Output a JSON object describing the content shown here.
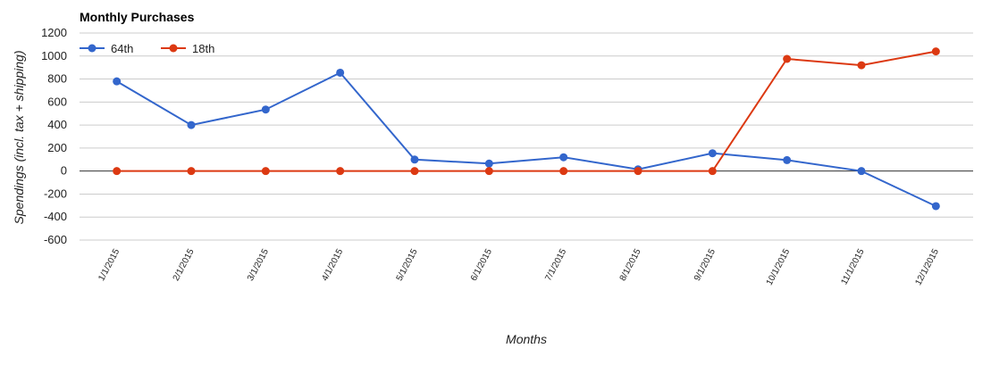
{
  "chart_data": {
    "type": "line",
    "title": "Monthly Purchases",
    "xlabel": "Months",
    "ylabel": "Spendings (incl. tax + shipping)",
    "categories": [
      "1/1/2015",
      "2/1/2015",
      "3/1/2015",
      "4/1/2015",
      "5/1/2015",
      "6/1/2015",
      "7/1/2015",
      "8/1/2015",
      "9/1/2015",
      "10/1/2015",
      "11/1/2015",
      "12/1/2015"
    ],
    "y_ticks": [
      1200,
      1000,
      800,
      600,
      400,
      200,
      0,
      -200,
      -400,
      -600
    ],
    "ylim": [
      -600,
      1200
    ],
    "grid": true,
    "legend_position": "top-left",
    "series": [
      {
        "name": "64th",
        "color": "#3366cc",
        "values": [
          780,
          400,
          535,
          855,
          100,
          65,
          120,
          15,
          155,
          95,
          0,
          -305
        ]
      },
      {
        "name": "18th",
        "color": "#dc3912",
        "values": [
          0,
          0,
          0,
          0,
          0,
          0,
          0,
          0,
          0,
          975,
          920,
          1040
        ]
      }
    ]
  }
}
